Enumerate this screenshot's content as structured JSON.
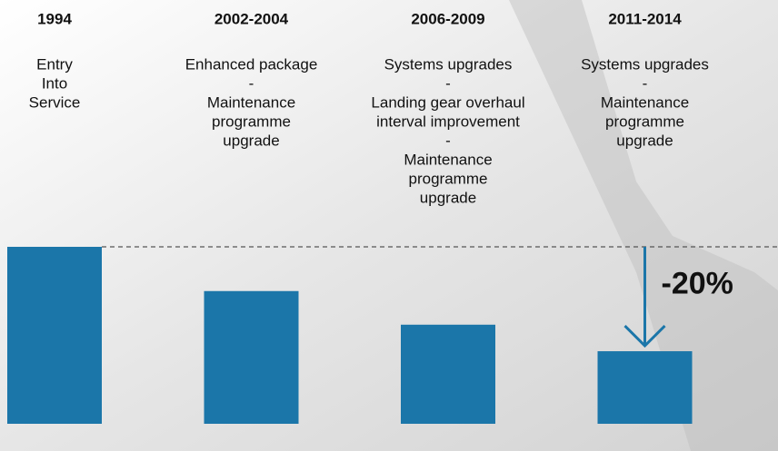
{
  "chart_data": {
    "type": "bar",
    "categories": [
      "1994",
      "2002-2004",
      "2006-2009",
      "2011-2014"
    ],
    "descriptions": [
      [
        "Entry",
        "Into",
        "Service"
      ],
      [
        "Enhanced package",
        "-",
        "Maintenance",
        "programme",
        "upgrade"
      ],
      [
        "Systems upgrades",
        "-",
        "Landing gear overhaul",
        "interval improvement",
        "-",
        "Maintenance",
        "programme",
        "upgrade"
      ],
      [
        "Systems upgrades",
        "-",
        "Maintenance",
        "programme",
        "upgrade"
      ]
    ],
    "values": [
      100,
      75,
      56,
      41
    ],
    "color": "#1b76a9",
    "annotation": "-20%"
  }
}
